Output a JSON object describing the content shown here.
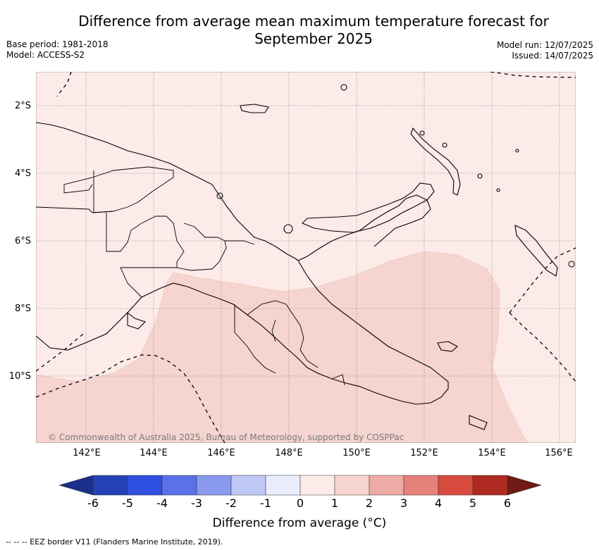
{
  "title": "Difference from average mean maximum temperature forecast for September 2025",
  "base_period": "Base period: 1981-2018",
  "model": "Model: ACCESS-S2",
  "model_run": "Model run: 12/07/2025",
  "issued": "Issued: 14/07/2025",
  "lat_labels": [
    "2°S",
    "4°S",
    "6°S",
    "8°S",
    "10°S"
  ],
  "lon_labels": [
    "142°E",
    "144°E",
    "146°E",
    "148°E",
    "150°E",
    "152°E",
    "154°E",
    "156°E"
  ],
  "credit": "© Commonwealth of Australia 2025, Bureau of Meteorology, supported by COSPPac",
  "colorbar": {
    "title": "Difference from average (°C)",
    "ticks": [
      "-6",
      "-5",
      "-4",
      "-3",
      "-2",
      "-1",
      "0",
      "1",
      "2",
      "3",
      "4",
      "5",
      "6"
    ],
    "colors": [
      "#1a2f8a",
      "#2541b5",
      "#2f4fe0",
      "#5a72e8",
      "#8899ee",
      "#c0c8f5",
      "#e8ecfb",
      "#fcebe8",
      "#f6d4d0",
      "#eeaaa5",
      "#e5817a",
      "#d94a3e",
      "#b02a22",
      "#6e1a15"
    ]
  },
  "map_shading": {
    "base_class": "0 to 1",
    "base_color": "#fcebe8",
    "south_region_class": "1 to 2",
    "south_region_color": "#f6d4d0"
  },
  "footnote": "-- -- -- EEZ border V11 (Flanders Marine Institute, 2019)."
}
